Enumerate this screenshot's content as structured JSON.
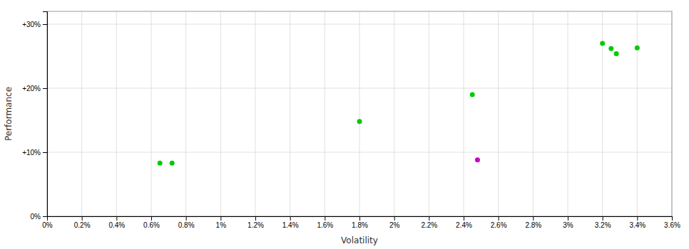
{
  "chart_data": {
    "type": "scatter",
    "x_label": "Volatility",
    "y_label": "Performance",
    "xlim": [
      0.0,
      0.036
    ],
    "ylim": [
      0.0,
      0.32
    ],
    "xticks": [
      {
        "value": 0.0,
        "label": "0%"
      },
      {
        "value": 0.002,
        "label": "0.2%"
      },
      {
        "value": 0.004,
        "label": "0.4%"
      },
      {
        "value": 0.006,
        "label": "0.6%"
      },
      {
        "value": 0.008,
        "label": "0.8%"
      },
      {
        "value": 0.01,
        "label": "1%"
      },
      {
        "value": 0.012,
        "label": "1.2%"
      },
      {
        "value": 0.014,
        "label": "1.4%"
      },
      {
        "value": 0.016,
        "label": "1.6%"
      },
      {
        "value": 0.018,
        "label": "1.8%"
      },
      {
        "value": 0.02,
        "label": "2%"
      },
      {
        "value": 0.022,
        "label": "2.2%"
      },
      {
        "value": 0.024,
        "label": "2.4%"
      },
      {
        "value": 0.026,
        "label": "2.6%"
      },
      {
        "value": 0.028,
        "label": "2.8%"
      },
      {
        "value": 0.03,
        "label": "3%"
      },
      {
        "value": 0.032,
        "label": "3.2%"
      },
      {
        "value": 0.034,
        "label": "3.4%"
      },
      {
        "value": 0.036,
        "label": "3.6%"
      }
    ],
    "yticks": [
      {
        "value": 0.0,
        "label": "0%"
      },
      {
        "value": 0.1,
        "label": "+10%"
      },
      {
        "value": 0.2,
        "label": "+20%"
      },
      {
        "value": 0.3,
        "label": "+30%"
      }
    ],
    "grid": true,
    "series": [
      {
        "color": "#00cc00",
        "x": [
          0.0065,
          0.0072,
          0.018,
          0.0245,
          0.032,
          0.0325,
          0.0328,
          0.034
        ],
        "values": [
          0.083,
          0.083,
          0.148,
          0.19,
          0.27,
          0.262,
          0.254,
          0.263
        ]
      },
      {
        "color": "#cc00cc",
        "x": [
          0.0248
        ],
        "values": [
          0.088
        ]
      }
    ]
  }
}
